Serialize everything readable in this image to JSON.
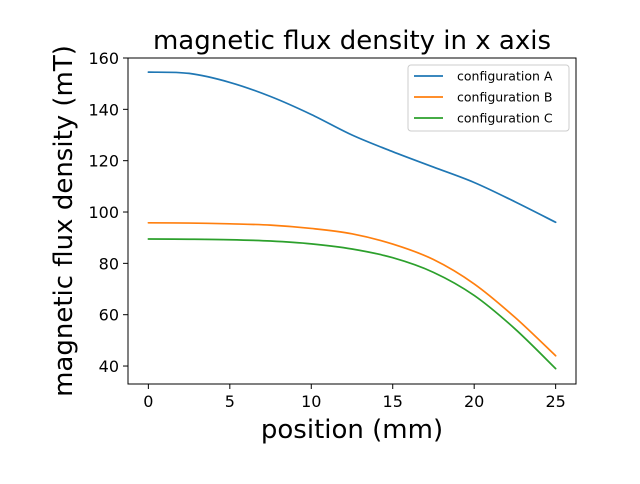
{
  "chart_data": {
    "type": "line",
    "title": "magnetic flux density in x axis",
    "xlabel": "position (mm)",
    "ylabel": "magnetic flux density (mT)",
    "xlim": [
      -1.25,
      26.25
    ],
    "ylim": [
      33,
      160
    ],
    "xticks": [
      0,
      5,
      10,
      15,
      20,
      25
    ],
    "yticks": [
      40,
      60,
      80,
      100,
      120,
      140,
      160
    ],
    "grid": false,
    "legend_position": "top-right",
    "series": [
      {
        "name": "configuration A",
        "color": "#1f77b4",
        "x": [
          0,
          2.5,
          5,
          7.5,
          10,
          12.5,
          15,
          17.5,
          20,
          22.5,
          25
        ],
        "y": [
          154.5,
          154,
          150.5,
          145,
          138,
          130,
          123.5,
          117.5,
          111.5,
          104,
          96
        ]
      },
      {
        "name": "configuration B",
        "color": "#ff7f0e",
        "x": [
          0,
          2.5,
          5,
          7.5,
          10,
          12.5,
          15,
          17.5,
          20,
          22.5,
          25
        ],
        "y": [
          95.8,
          95.7,
          95.4,
          94.9,
          93.6,
          91.5,
          87.5,
          81.5,
          72,
          59,
          44
        ]
      },
      {
        "name": "configuration C",
        "color": "#2ca02c",
        "x": [
          0,
          2.5,
          5,
          7.5,
          10,
          12.5,
          15,
          17.5,
          20,
          22.5,
          25
        ],
        "y": [
          89.5,
          89.4,
          89.2,
          88.7,
          87.6,
          85.6,
          82.2,
          76.5,
          67.5,
          54.5,
          39
        ]
      }
    ]
  }
}
